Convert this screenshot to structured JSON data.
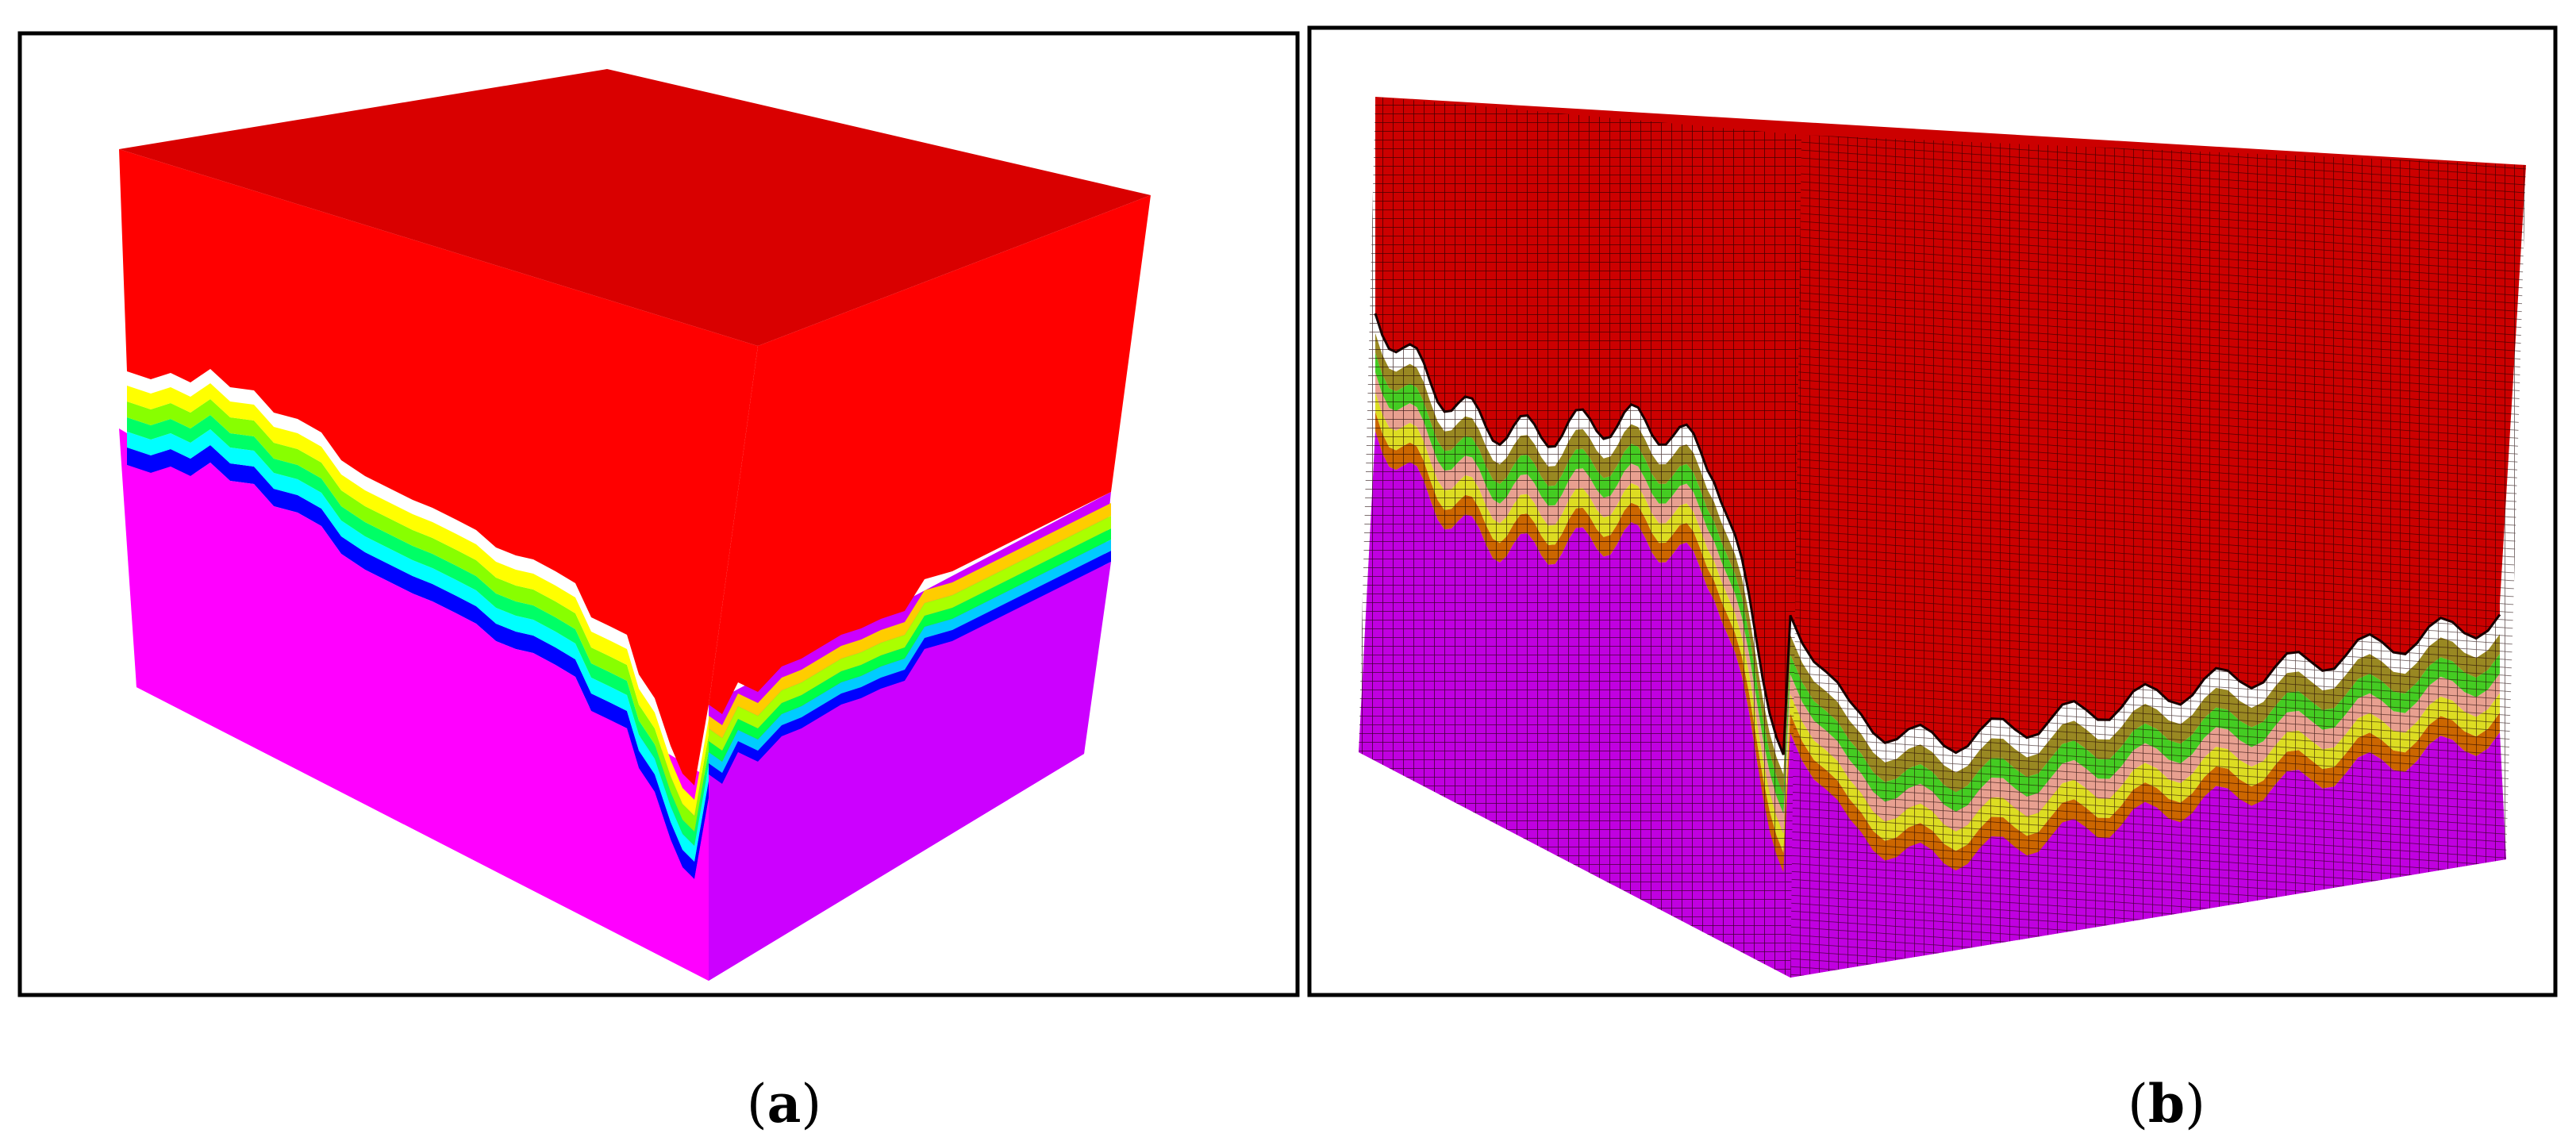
{
  "panels": [
    {
      "id": "a",
      "caption_open": "(",
      "caption_letter": "a",
      "caption_close": ")",
      "layer_colors": [
        "#ff00ff",
        "#0000ff",
        "#00ffff",
        "#00ff66",
        "#88ff00",
        "#ffff00",
        "#ff0000"
      ],
      "right_layer_colors": [
        "#cc00ff",
        "#0000ff",
        "#00ccff",
        "#00ff44",
        "#aaff00",
        "#ffcc00",
        "#ff0000"
      ],
      "top_color": "#d90000"
    },
    {
      "id": "b",
      "caption_open": "(",
      "caption_letter": "b",
      "caption_close": ")",
      "layer_colors": [
        "#c000e0",
        "#cc6600",
        "#dddd22",
        "#e8a090",
        "#44cc22",
        "#998822",
        "#cc0000"
      ],
      "mesh_line_color": "#1a0000"
    }
  ]
}
